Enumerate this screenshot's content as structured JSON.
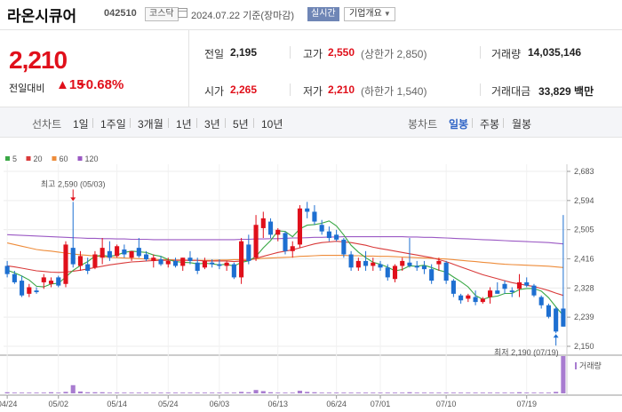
{
  "header": {
    "name": "라온시큐어",
    "code": "042510",
    "market": "코스닥",
    "date": "2024.07.22",
    "basis": "기준(장마감)",
    "realtime": "실시간",
    "company_info": "기업개요"
  },
  "quote": {
    "price": "2,210",
    "change_label": "전일대비",
    "change_arrow": "▲",
    "change_value": "15",
    "change_pct": "+0.68%",
    "prev_label": "전일",
    "prev": "2,195",
    "high_label": "고가",
    "high": "2,550",
    "upper_label": "(상한가 2,850)",
    "volume_label": "거래량",
    "volume": "14,035,146",
    "open_label": "시가",
    "open": "2,265",
    "low_label": "저가",
    "low": "2,210",
    "lower_label": "(하한가 1,540)",
    "amount_label": "거래대금",
    "amount": "33,829 백만"
  },
  "periodbar": {
    "line_label": "선차트",
    "line_items": [
      "1일",
      "1주일",
      "3개월",
      "1년",
      "3년",
      "5년",
      "10년"
    ],
    "candle_label": "봉차트",
    "candle_items": [
      "일봉",
      "주봉",
      "월봉"
    ],
    "active_candle": "일봉"
  },
  "colors": {
    "up": "#e0101b",
    "down": "#1d6fd1",
    "ma5": "#3aa845",
    "ma20": "#d93a3a",
    "ma60": "#ee8c3a",
    "ma120": "#9b59c4",
    "volume": "#a87cd0"
  },
  "chart_data": {
    "type": "candlestick",
    "legend": [
      "5",
      "20",
      "60",
      "120"
    ],
    "y_ticks": [
      "2,683",
      "2,594",
      "2,505",
      "2,416",
      "2,328",
      "2,239",
      "2,150"
    ],
    "ylim": [
      2150,
      2683
    ],
    "x_ticks": [
      "04/24",
      "05/02",
      "05/14",
      "05/24",
      "06/03",
      "06/13",
      "06/24",
      "07/01",
      "07/10",
      "07/19"
    ],
    "high_annotation": "최고 2,590 (05/03)",
    "low_annotation": "최저 2,190 (07/19)",
    "volume_label": "거래량",
    "candles": [
      {
        "o": 2395,
        "h": 2410,
        "l": 2360,
        "c": 2370
      },
      {
        "o": 2370,
        "h": 2380,
        "l": 2340,
        "c": 2345
      },
      {
        "o": 2350,
        "h": 2365,
        "l": 2300,
        "c": 2305
      },
      {
        "o": 2310,
        "h": 2340,
        "l": 2300,
        "c": 2330
      },
      {
        "o": 2320,
        "h": 2330,
        "l": 2310,
        "c": 2315
      },
      {
        "o": 2345,
        "h": 2370,
        "l": 2325,
        "c": 2360
      },
      {
        "o": 2340,
        "h": 2360,
        "l": 2330,
        "c": 2350
      },
      {
        "o": 2360,
        "h": 2365,
        "l": 2330,
        "c": 2335
      },
      {
        "o": 2340,
        "h": 2470,
        "l": 2330,
        "c": 2460
      },
      {
        "o": 2450,
        "h": 2590,
        "l": 2390,
        "c": 2400
      },
      {
        "o": 2395,
        "h": 2440,
        "l": 2380,
        "c": 2425
      },
      {
        "o": 2400,
        "h": 2420,
        "l": 2370,
        "c": 2380
      },
      {
        "o": 2390,
        "h": 2440,
        "l": 2385,
        "c": 2430
      },
      {
        "o": 2420,
        "h": 2480,
        "l": 2400,
        "c": 2450
      },
      {
        "o": 2440,
        "h": 2470,
        "l": 2410,
        "c": 2420
      },
      {
        "o": 2425,
        "h": 2460,
        "l": 2420,
        "c": 2455
      },
      {
        "o": 2445,
        "h": 2460,
        "l": 2420,
        "c": 2430
      },
      {
        "o": 2420,
        "h": 2440,
        "l": 2410,
        "c": 2440
      },
      {
        "o": 2450,
        "h": 2480,
        "l": 2420,
        "c": 2425
      },
      {
        "o": 2430,
        "h": 2440,
        "l": 2410,
        "c": 2415
      },
      {
        "o": 2410,
        "h": 2430,
        "l": 2390,
        "c": 2420
      },
      {
        "o": 2415,
        "h": 2425,
        "l": 2395,
        "c": 2400
      },
      {
        "o": 2400,
        "h": 2420,
        "l": 2390,
        "c": 2410
      },
      {
        "o": 2410,
        "h": 2420,
        "l": 2390,
        "c": 2395
      },
      {
        "o": 2395,
        "h": 2420,
        "l": 2380,
        "c": 2420
      },
      {
        "o": 2420,
        "h": 2440,
        "l": 2400,
        "c": 2410
      },
      {
        "o": 2405,
        "h": 2420,
        "l": 2370,
        "c": 2380
      },
      {
        "o": 2390,
        "h": 2420,
        "l": 2385,
        "c": 2410
      },
      {
        "o": 2405,
        "h": 2415,
        "l": 2390,
        "c": 2400
      },
      {
        "o": 2400,
        "h": 2415,
        "l": 2385,
        "c": 2395
      },
      {
        "o": 2395,
        "h": 2410,
        "l": 2380,
        "c": 2405
      },
      {
        "o": 2400,
        "h": 2405,
        "l": 2355,
        "c": 2360
      },
      {
        "o": 2360,
        "h": 2480,
        "l": 2340,
        "c": 2470
      },
      {
        "o": 2460,
        "h": 2490,
        "l": 2400,
        "c": 2410
      },
      {
        "o": 2420,
        "h": 2550,
        "l": 2410,
        "c": 2520
      },
      {
        "o": 2510,
        "h": 2560,
        "l": 2480,
        "c": 2540
      },
      {
        "o": 2530,
        "h": 2540,
        "l": 2480,
        "c": 2490
      },
      {
        "o": 2490,
        "h": 2510,
        "l": 2470,
        "c": 2505
      },
      {
        "o": 2495,
        "h": 2500,
        "l": 2430,
        "c": 2440
      },
      {
        "o": 2440,
        "h": 2470,
        "l": 2420,
        "c": 2455
      },
      {
        "o": 2460,
        "h": 2580,
        "l": 2450,
        "c": 2570
      },
      {
        "o": 2570,
        "h": 2590,
        "l": 2540,
        "c": 2560
      },
      {
        "o": 2560,
        "h": 2580,
        "l": 2520,
        "c": 2530
      },
      {
        "o": 2520,
        "h": 2535,
        "l": 2490,
        "c": 2500
      },
      {
        "o": 2500,
        "h": 2515,
        "l": 2470,
        "c": 2480
      },
      {
        "o": 2490,
        "h": 2505,
        "l": 2470,
        "c": 2475
      },
      {
        "o": 2475,
        "h": 2480,
        "l": 2420,
        "c": 2430
      },
      {
        "o": 2430,
        "h": 2440,
        "l": 2380,
        "c": 2390
      },
      {
        "o": 2390,
        "h": 2420,
        "l": 2380,
        "c": 2410
      },
      {
        "o": 2410,
        "h": 2440,
        "l": 2380,
        "c": 2395
      },
      {
        "o": 2395,
        "h": 2420,
        "l": 2380,
        "c": 2405
      },
      {
        "o": 2400,
        "h": 2410,
        "l": 2380,
        "c": 2390
      },
      {
        "o": 2390,
        "h": 2400,
        "l": 2350,
        "c": 2360
      },
      {
        "o": 2355,
        "h": 2400,
        "l": 2345,
        "c": 2395
      },
      {
        "o": 2395,
        "h": 2420,
        "l": 2380,
        "c": 2410
      },
      {
        "o": 2405,
        "h": 2480,
        "l": 2390,
        "c": 2395
      },
      {
        "o": 2395,
        "h": 2410,
        "l": 2380,
        "c": 2390
      },
      {
        "o": 2395,
        "h": 2410,
        "l": 2370,
        "c": 2385
      },
      {
        "o": 2385,
        "h": 2400,
        "l": 2340,
        "c": 2350
      },
      {
        "o": 2400,
        "h": 2420,
        "l": 2380,
        "c": 2410
      },
      {
        "o": 2405,
        "h": 2410,
        "l": 2340,
        "c": 2350
      },
      {
        "o": 2350,
        "h": 2355,
        "l": 2300,
        "c": 2310
      },
      {
        "o": 2305,
        "h": 2310,
        "l": 2280,
        "c": 2290
      },
      {
        "o": 2295,
        "h": 2310,
        "l": 2285,
        "c": 2305
      },
      {
        "o": 2300,
        "h": 2320,
        "l": 2275,
        "c": 2285
      },
      {
        "o": 2285,
        "h": 2300,
        "l": 2280,
        "c": 2295
      },
      {
        "o": 2300,
        "h": 2330,
        "l": 2280,
        "c": 2320
      },
      {
        "o": 2320,
        "h": 2345,
        "l": 2310,
        "c": 2310
      },
      {
        "o": 2340,
        "h": 2350,
        "l": 2310,
        "c": 2325
      },
      {
        "o": 2320,
        "h": 2330,
        "l": 2300,
        "c": 2315
      },
      {
        "o": 2325,
        "h": 2370,
        "l": 2300,
        "c": 2345
      },
      {
        "o": 2345,
        "h": 2360,
        "l": 2330,
        "c": 2335
      },
      {
        "o": 2335,
        "h": 2340,
        "l": 2300,
        "c": 2305
      },
      {
        "o": 2300,
        "h": 2305,
        "l": 2265,
        "c": 2275
      },
      {
        "o": 2275,
        "h": 2280,
        "l": 2235,
        "c": 2240
      },
      {
        "o": 2265,
        "h": 2270,
        "l": 2190,
        "c": 2195
      },
      {
        "o": 2265,
        "h": 2550,
        "l": 2210,
        "c": 2210
      }
    ],
    "ma5": [
      2382,
      2374,
      2364,
      2352,
      2333,
      2331,
      2340,
      2342,
      2361,
      2381,
      2396,
      2408,
      2425,
      2427,
      2424,
      2428,
      2436,
      2440,
      2438,
      2436,
      2428,
      2424,
      2414,
      2408,
      2406,
      2405,
      2401,
      2403,
      2401,
      2398,
      2400,
      2394,
      2406,
      2410,
      2424,
      2450,
      2472,
      2502,
      2500,
      2484,
      2508,
      2519,
      2521,
      2525,
      2532,
      2517,
      2489,
      2458,
      2437,
      2420,
      2406,
      2400,
      2391,
      2380,
      2384,
      2395,
      2394,
      2397,
      2390,
      2382,
      2376,
      2361,
      2347,
      2331,
      2305,
      2293,
      2300,
      2303,
      2311,
      2311,
      2323,
      2326,
      2326,
      2318,
      2298,
      2270,
      2244
    ],
    "ma20": [
      2395,
      2392,
      2388,
      2384,
      2380,
      2378,
      2376,
      2375,
      2376,
      2379,
      2382,
      2386,
      2390,
      2394,
      2398,
      2401,
      2404,
      2407,
      2408,
      2410,
      2411,
      2412,
      2412,
      2412,
      2412,
      2412,
      2412,
      2410,
      2410,
      2410,
      2410,
      2408,
      2410,
      2412,
      2418,
      2424,
      2430,
      2436,
      2440,
      2444,
      2450,
      2456,
      2462,
      2466,
      2468,
      2470,
      2468,
      2466,
      2462,
      2458,
      2452,
      2448,
      2444,
      2440,
      2436,
      2432,
      2428,
      2424,
      2420,
      2414,
      2408,
      2400,
      2392,
      2384,
      2376,
      2368,
      2362,
      2356,
      2350,
      2344,
      2340,
      2336,
      2332,
      2326,
      2320,
      2312,
      2305
    ],
    "ma60": [
      2465,
      2460,
      2455,
      2450,
      2445,
      2442,
      2440,
      2437,
      2434,
      2431,
      2429,
      2427,
      2425,
      2423,
      2421,
      2420,
      2419,
      2418,
      2417,
      2416,
      2415,
      2414,
      2414,
      2413,
      2413,
      2412,
      2412,
      2412,
      2412,
      2413,
      2413,
      2414,
      2414,
      2415,
      2416,
      2418,
      2419,
      2420,
      2421,
      2422,
      2424,
      2425,
      2426,
      2427,
      2427,
      2427,
      2427,
      2426,
      2426,
      2425,
      2425,
      2424,
      2424,
      2423,
      2422,
      2421,
      2420,
      2419,
      2418,
      2417,
      2416,
      2414,
      2412,
      2410,
      2408,
      2406,
      2404,
      2402,
      2400,
      2399,
      2398,
      2397,
      2396,
      2395,
      2394,
      2392,
      2390
    ],
    "ma120": [
      2490,
      2489,
      2488,
      2487,
      2486,
      2485,
      2484,
      2483,
      2482,
      2481,
      2480,
      2479,
      2479,
      2478,
      2478,
      2477,
      2477,
      2476,
      2476,
      2476,
      2475,
      2475,
      2475,
      2475,
      2475,
      2475,
      2475,
      2475,
      2475,
      2475,
      2475,
      2475,
      2476,
      2476,
      2477,
      2477,
      2478,
      2478,
      2479,
      2480,
      2480,
      2481,
      2482,
      2482,
      2483,
      2483,
      2484,
      2484,
      2484,
      2484,
      2484,
      2484,
      2484,
      2484,
      2484,
      2483,
      2483,
      2482,
      2482,
      2481,
      2480,
      2479,
      2478,
      2477,
      2476,
      2475,
      2474,
      2473,
      2472,
      2471,
      2470,
      2469,
      2468,
      2467,
      2466,
      2464,
      2462
    ],
    "volume": [
      3,
      2,
      2,
      2,
      2,
      2,
      3,
      2,
      4,
      22,
      5,
      3,
      3,
      3,
      2,
      2,
      2,
      2,
      2,
      2,
      2,
      2,
      2,
      2,
      2,
      2,
      2,
      2,
      2,
      2,
      2,
      2,
      4,
      3,
      9,
      6,
      3,
      2,
      2,
      2,
      7,
      4,
      3,
      2,
      2,
      2,
      2,
      2,
      2,
      2,
      2,
      2,
      2,
      2,
      2,
      3,
      2,
      2,
      2,
      2,
      2,
      2,
      2,
      2,
      2,
      2,
      2,
      2,
      2,
      2,
      3,
      2,
      2,
      2,
      2,
      4,
      100
    ]
  }
}
